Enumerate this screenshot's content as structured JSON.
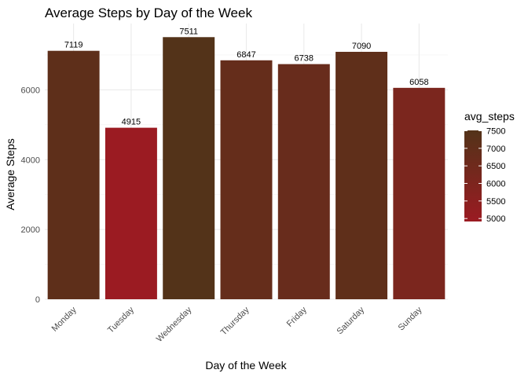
{
  "chart_data": {
    "type": "bar",
    "title": "Average Steps by Day of the Week",
    "xlabel": "Day of the Week",
    "ylabel": "Average Steps",
    "categories": [
      "Monday",
      "Tuesday",
      "Wednesday",
      "Thursday",
      "Friday",
      "Saturday",
      "Sunday"
    ],
    "values": [
      7119,
      4915,
      7511,
      6847,
      6738,
      7090,
      6058
    ],
    "value_labels": [
      "7119",
      "4915",
      "7511",
      "6847",
      "6738",
      "7090",
      "6058"
    ],
    "ylim": [
      0,
      7900
    ],
    "yticks": [
      0,
      2000,
      4000,
      6000
    ],
    "ytick_labels": [
      "0",
      "2000",
      "4000",
      "6000"
    ],
    "grid": true,
    "legend": {
      "title": "avg_steps",
      "position": "right",
      "ticks": [
        7500,
        7000,
        6500,
        6000,
        5500,
        5000
      ],
      "tick_labels": [
        "7500",
        "7000",
        "6500",
        "6000",
        "5500",
        "5000"
      ],
      "range": [
        4915,
        7511
      ],
      "color_low": "#9b1b22",
      "color_high": "#533319"
    }
  }
}
